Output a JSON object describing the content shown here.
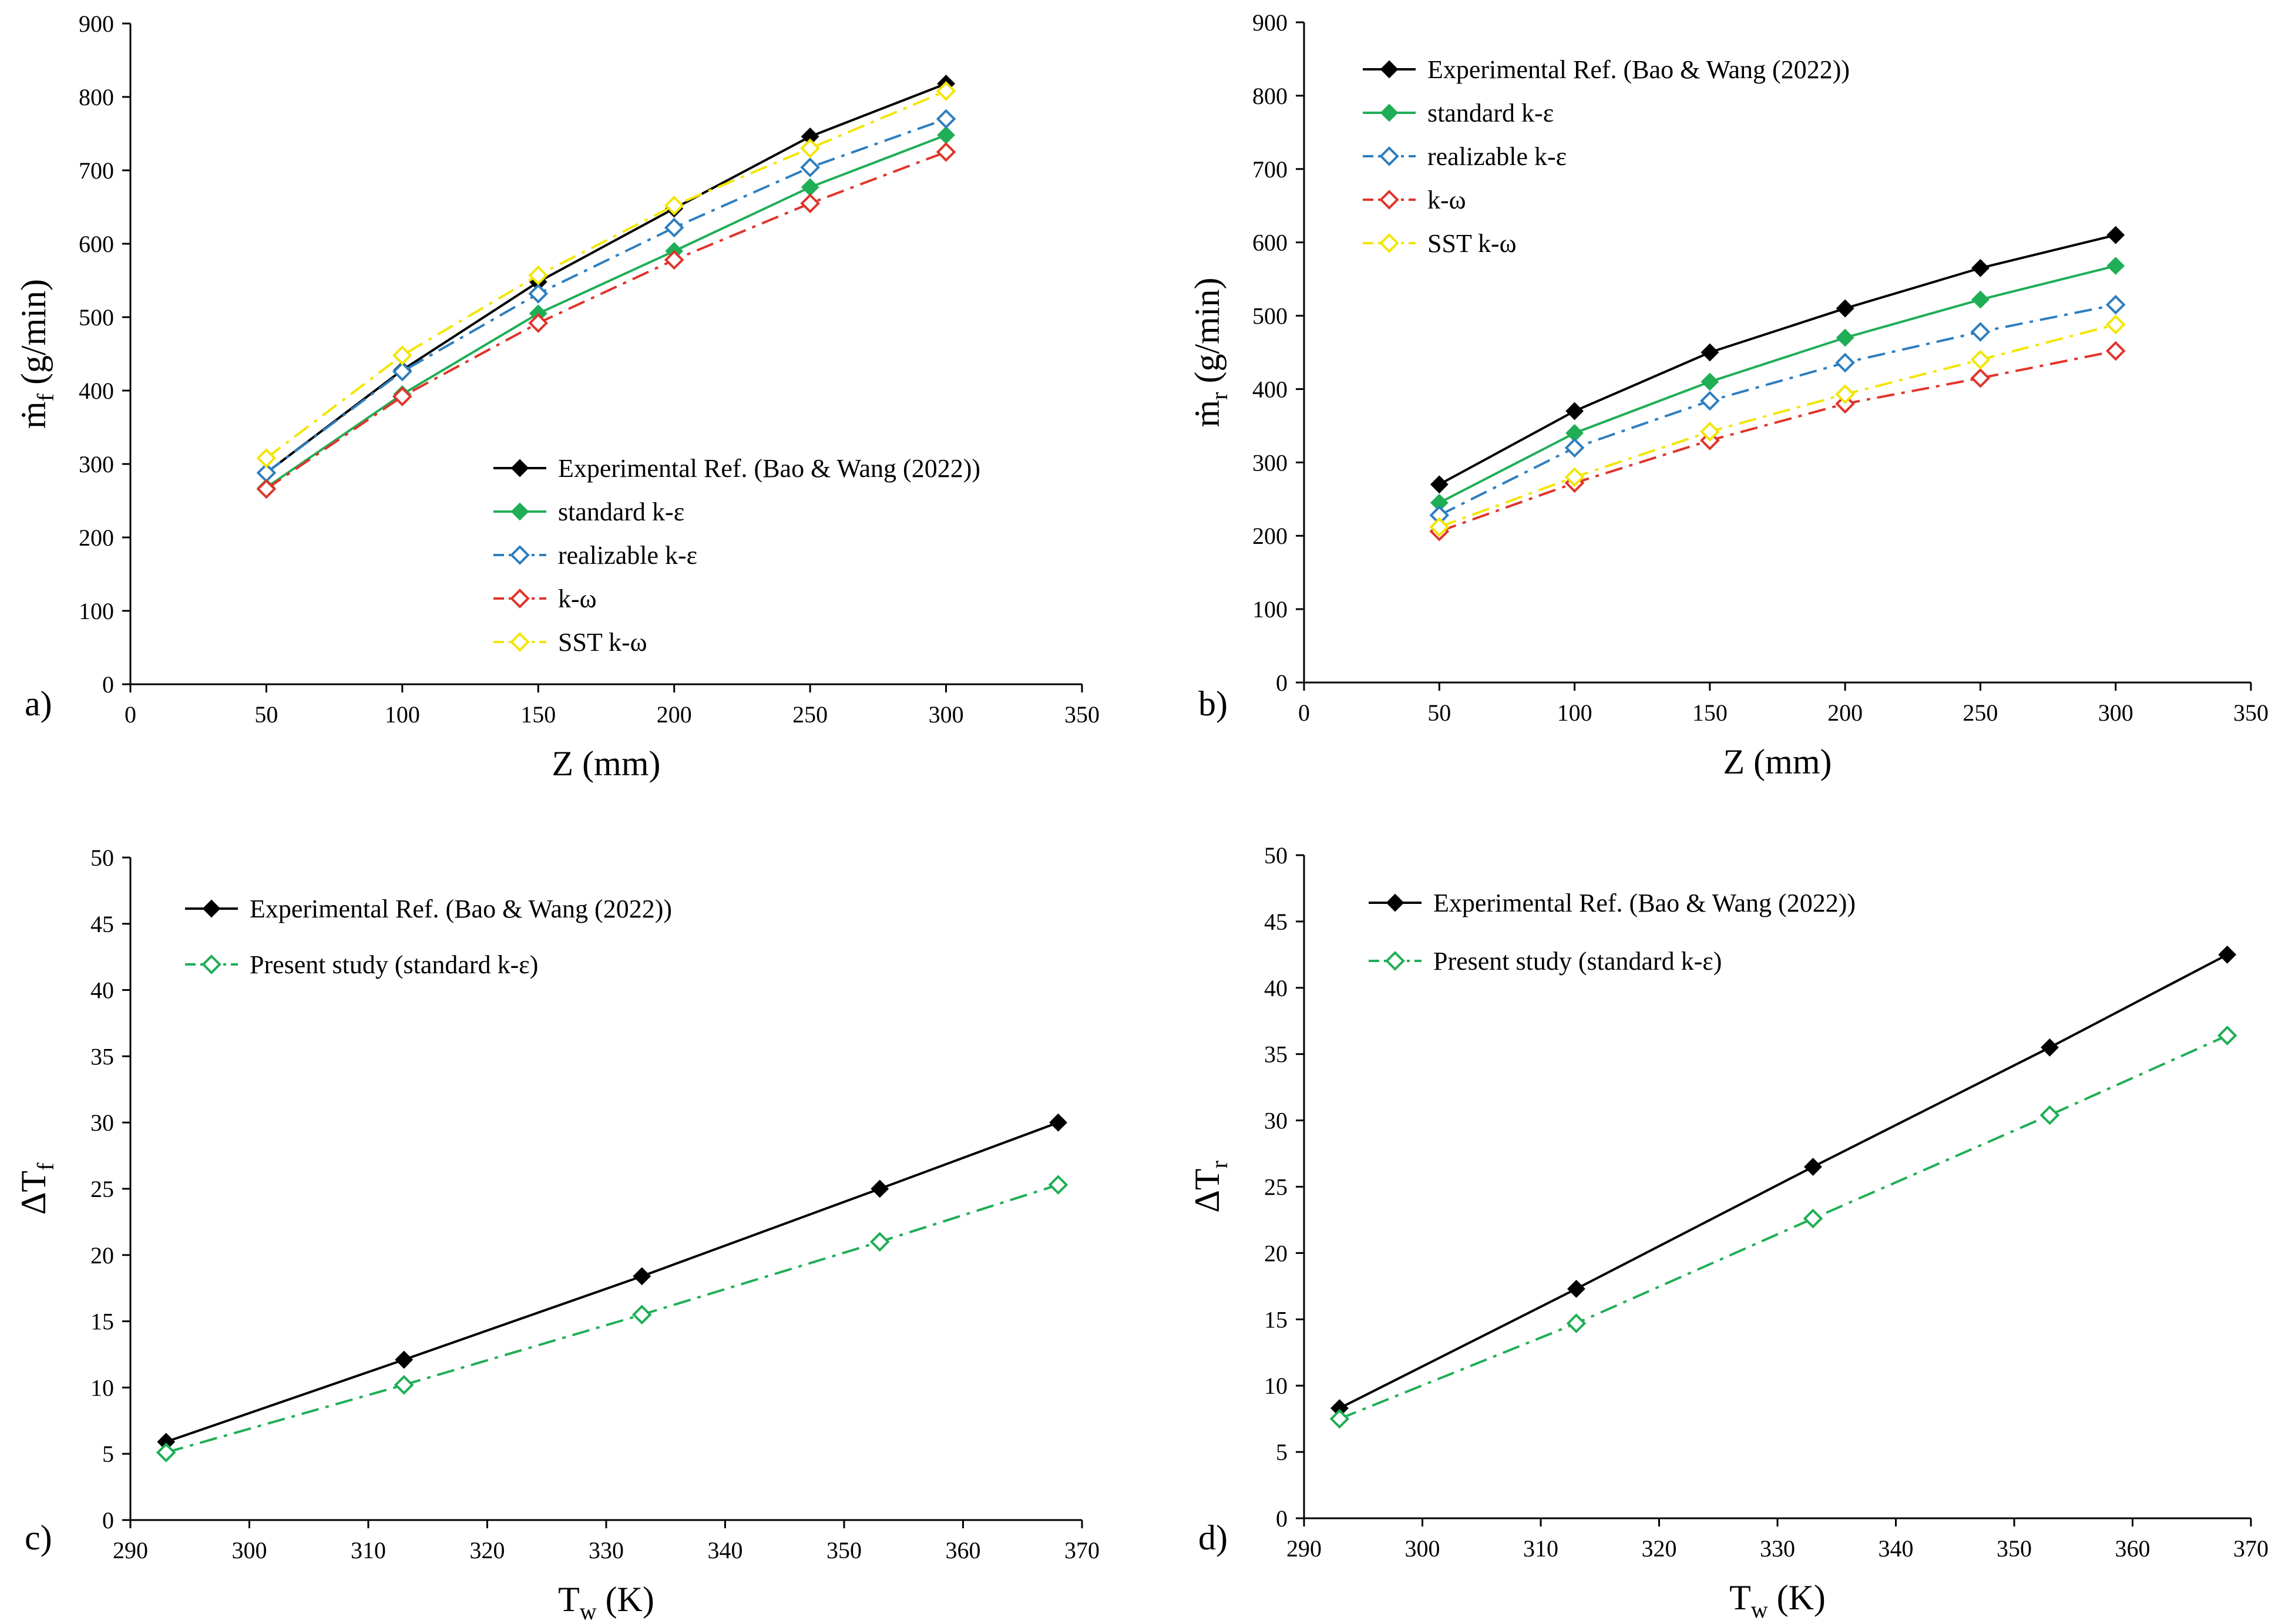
{
  "colors": {
    "black": "#000000",
    "green": "#1fae55",
    "blue": "#2e7ebf",
    "red": "#e0342b",
    "yellow": "#f2e600"
  },
  "chart_data": [
    {
      "id": "a",
      "type": "line",
      "panel_label": "a)",
      "xlabel": "Z (mm)",
      "ylabel": {
        "main": "ṁ",
        "sub": "f",
        "tail": " (g/min)"
      },
      "xlim": [
        0,
        350
      ],
      "ylim": [
        0,
        900
      ],
      "xticks": [
        "0",
        "50",
        "100",
        "150",
        "200",
        "250",
        "300",
        "350"
      ],
      "yticks": [
        "0",
        "100",
        "200",
        "300",
        "400",
        "500",
        "600",
        "700",
        "800",
        "900"
      ],
      "x": [
        50,
        100,
        150,
        200,
        250,
        300
      ],
      "legend_position": "lower-right",
      "series": [
        {
          "name": "Experimental Ref. (Bao & Wang (2022))",
          "color": "#000000",
          "dash": "solid",
          "marker": "diamond-filled",
          "values": [
            288,
            428,
            548,
            648,
            746,
            818
          ]
        },
        {
          "name": "standard k-ε",
          "color": "#1fae55",
          "dash": "solid",
          "marker": "diamond-filled",
          "values": [
            268,
            395,
            505,
            590,
            677,
            748
          ]
        },
        {
          "name": "realizable k-ε",
          "color": "#2e7ebf",
          "dash": "dashdot",
          "marker": "diamond-open",
          "values": [
            288,
            426,
            532,
            622,
            704,
            770
          ]
        },
        {
          "name": "k-ω",
          "color": "#e0342b",
          "dash": "dashdot",
          "marker": "diamond-open",
          "values": [
            266,
            392,
            492,
            578,
            655,
            725
          ]
        },
        {
          "name": "SST k-ω",
          "color": "#f2e600",
          "dash": "dashdot",
          "marker": "diamond-open",
          "values": [
            308,
            448,
            557,
            652,
            730,
            808
          ]
        }
      ]
    },
    {
      "id": "b",
      "type": "line",
      "panel_label": "b)",
      "xlabel": "Z (mm)",
      "ylabel": {
        "main": "ṁ",
        "sub": "r",
        "tail": " (g/min)"
      },
      "xlim": [
        0,
        350
      ],
      "ylim": [
        0,
        900
      ],
      "xticks": [
        "0",
        "50",
        "100",
        "150",
        "200",
        "250",
        "300",
        "350"
      ],
      "yticks": [
        "0",
        "100",
        "200",
        "300",
        "400",
        "500",
        "600",
        "700",
        "800",
        "900"
      ],
      "x": [
        50,
        100,
        150,
        200,
        250,
        300
      ],
      "legend_position": "top-left",
      "series": [
        {
          "name": "Experimental Ref. (Bao & Wang (2022))",
          "color": "#000000",
          "dash": "solid",
          "marker": "diamond-filled",
          "values": [
            270,
            370,
            450,
            510,
            565,
            610
          ]
        },
        {
          "name": "standard k-ε",
          "color": "#1fae55",
          "dash": "solid",
          "marker": "diamond-filled",
          "values": [
            245,
            340,
            410,
            470,
            522,
            568
          ]
        },
        {
          "name": "realizable k-ε",
          "color": "#2e7ebf",
          "dash": "dashdot",
          "marker": "diamond-open",
          "values": [
            228,
            320,
            384,
            436,
            478,
            515
          ]
        },
        {
          "name": "k-ω",
          "color": "#e0342b",
          "dash": "dashdot",
          "marker": "diamond-open",
          "values": [
            206,
            272,
            330,
            380,
            415,
            452
          ]
        },
        {
          "name": "SST k-ω",
          "color": "#f2e600",
          "dash": "dashdot",
          "marker": "diamond-open",
          "values": [
            212,
            280,
            342,
            393,
            440,
            488
          ]
        }
      ]
    },
    {
      "id": "c",
      "type": "line",
      "panel_label": "c)",
      "xlabel": {
        "main": "T",
        "sub": "w",
        "tail": " (K)"
      },
      "ylabel": {
        "main": "ΔT",
        "sub": "f",
        "tail": ""
      },
      "xlim": [
        290,
        370
      ],
      "ylim": [
        0,
        50
      ],
      "xticks": [
        "290",
        "300",
        "310",
        "320",
        "330",
        "340",
        "350",
        "360",
        "370"
      ],
      "yticks": [
        "0",
        "5",
        "10",
        "15",
        "20",
        "25",
        "30",
        "35",
        "40",
        "45",
        "50"
      ],
      "x": [
        293,
        313,
        333,
        353,
        368
      ],
      "legend_position": "top-left",
      "series": [
        {
          "name": "Experimental Ref. (Bao & Wang (2022))",
          "color": "#000000",
          "dash": "solid",
          "marker": "diamond-filled",
          "values": [
            5.9,
            12.1,
            18.4,
            25.0,
            30.0
          ]
        },
        {
          "name": "Present study (standard k-ε)",
          "color": "#1fae55",
          "dash": "dashdot",
          "marker": "diamond-open",
          "values": [
            5.1,
            10.2,
            15.5,
            21.0,
            25.3
          ]
        }
      ]
    },
    {
      "id": "d",
      "type": "line",
      "panel_label": "d)",
      "xlabel": {
        "main": "T",
        "sub": "w",
        "tail": " (K)"
      },
      "ylabel": {
        "main": "ΔT",
        "sub": "r",
        "tail": ""
      },
      "xlim": [
        290,
        370
      ],
      "ylim": [
        0,
        50
      ],
      "xticks": [
        "290",
        "300",
        "310",
        "320",
        "330",
        "340",
        "350",
        "360",
        "370"
      ],
      "yticks": [
        "0",
        "5",
        "10",
        "15",
        "20",
        "25",
        "30",
        "35",
        "40",
        "45",
        "50"
      ],
      "x": [
        293,
        313,
        333,
        353,
        368
      ],
      "legend_position": "top-left",
      "series": [
        {
          "name": "Experimental Ref. (Bao & Wang (2022))",
          "color": "#000000",
          "dash": "solid",
          "marker": "diamond-filled",
          "values": [
            8.3,
            17.3,
            26.5,
            35.5,
            42.5
          ]
        },
        {
          "name": "Present study (standard k-ε)",
          "color": "#1fae55",
          "dash": "dashdot",
          "marker": "diamond-open",
          "values": [
            7.5,
            14.7,
            22.6,
            30.4,
            36.4
          ]
        }
      ]
    }
  ]
}
